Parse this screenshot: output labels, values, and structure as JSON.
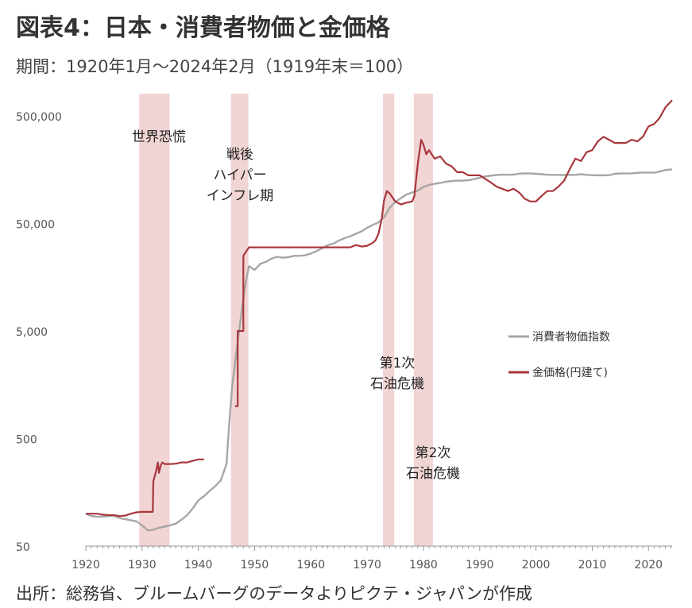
{
  "title": "図表4：日本・消費者物価と金価格",
  "subtitle": "期間：1920年1月～2024年2月（1919年末＝100）",
  "source": "出所：総務省、ブルームバーグのデータよりピクテ・ジャパンが作成",
  "chart_data": {
    "type": "line",
    "y_scale": "log",
    "xlim": [
      1920,
      2024.2
    ],
    "ylim": [
      50,
      1000000
    ],
    "x_ticks": [
      1920,
      1930,
      1940,
      1950,
      1960,
      1970,
      1980,
      1990,
      2000,
      2010,
      2020
    ],
    "y_ticks": [
      {
        "value": 50,
        "label": "50"
      },
      {
        "value": 500,
        "label": "500"
      },
      {
        "value": 5000,
        "label": "5,000"
      },
      {
        "value": 50000,
        "label": "50,000"
      },
      {
        "value": 500000,
        "label": "500,000"
      }
    ],
    "shaded_periods": [
      {
        "start": 1929.5,
        "end": 1934.9,
        "label_lines": [
          "世界恐慌"
        ]
      },
      {
        "start": 1945.8,
        "end": 1948.9,
        "label_lines": [
          "戦後",
          "ハイパー",
          "インフレ期"
        ]
      },
      {
        "start": 1972.8,
        "end": 1974.8,
        "label_lines": [
          "第1次",
          "石油危機"
        ]
      },
      {
        "start": 1978.3,
        "end": 1981.7,
        "label_lines": [
          "第2次",
          "石油危機"
        ]
      }
    ],
    "series": [
      {
        "name": "消費者物価指数",
        "color": "#a6a6a6",
        "points": [
          [
            1920,
            100
          ],
          [
            1921,
            95
          ],
          [
            1922,
            94
          ],
          [
            1923,
            94
          ],
          [
            1924,
            95
          ],
          [
            1925,
            96
          ],
          [
            1926,
            91
          ],
          [
            1927,
            89
          ],
          [
            1928,
            87
          ],
          [
            1929,
            85
          ],
          [
            1930,
            78
          ],
          [
            1931,
            70
          ],
          [
            1932,
            71
          ],
          [
            1933,
            74
          ],
          [
            1934,
            76
          ],
          [
            1935,
            78
          ],
          [
            1936,
            81
          ],
          [
            1937,
            88
          ],
          [
            1938,
            97
          ],
          [
            1939,
            112
          ],
          [
            1940,
            133
          ],
          [
            1941,
            145
          ],
          [
            1942,
            163
          ],
          [
            1943,
            180
          ],
          [
            1944,
            205
          ],
          [
            1945,
            290
          ],
          [
            1945.5,
            700
          ],
          [
            1946,
            1500
          ],
          [
            1947,
            4000
          ],
          [
            1948,
            10000
          ],
          [
            1948.5,
            15000
          ],
          [
            1949,
            20000
          ],
          [
            1950,
            18500
          ],
          [
            1951,
            21000
          ],
          [
            1952,
            22000
          ],
          [
            1953,
            23500
          ],
          [
            1954,
            24500
          ],
          [
            1955,
            24000
          ],
          [
            1956,
            24300
          ],
          [
            1957,
            25000
          ],
          [
            1958,
            25000
          ],
          [
            1959,
            25300
          ],
          [
            1960,
            26300
          ],
          [
            1961,
            27600
          ],
          [
            1962,
            29400
          ],
          [
            1963,
            31400
          ],
          [
            1964,
            32500
          ],
          [
            1965,
            34700
          ],
          [
            1966,
            36500
          ],
          [
            1967,
            38000
          ],
          [
            1968,
            40100
          ],
          [
            1969,
            42200
          ],
          [
            1970,
            45500
          ],
          [
            1971,
            48500
          ],
          [
            1972,
            51000
          ],
          [
            1973,
            57000
          ],
          [
            1974,
            70000
          ],
          [
            1975,
            79000
          ],
          [
            1976,
            86000
          ],
          [
            1977,
            93000
          ],
          [
            1978,
            97000
          ],
          [
            1979,
            101000
          ],
          [
            1980,
            109000
          ],
          [
            1981,
            114000
          ],
          [
            1982,
            117000
          ],
          [
            1983,
            119000
          ],
          [
            1984,
            122000
          ],
          [
            1985,
            124000
          ],
          [
            1986,
            125000
          ],
          [
            1987,
            125200
          ],
          [
            1988,
            126000
          ],
          [
            1989,
            129000
          ],
          [
            1990,
            133000
          ],
          [
            1991,
            137000
          ],
          [
            1992,
            139000
          ],
          [
            1993,
            141000
          ],
          [
            1994,
            142000
          ],
          [
            1995,
            142000
          ],
          [
            1996,
            142000
          ],
          [
            1997,
            145000
          ],
          [
            1998,
            146000
          ],
          [
            1999,
            145500
          ],
          [
            2000,
            144500
          ],
          [
            2001,
            143500
          ],
          [
            2002,
            142000
          ],
          [
            2003,
            141500
          ],
          [
            2004,
            141500
          ],
          [
            2005,
            141000
          ],
          [
            2006,
            141500
          ],
          [
            2007,
            141500
          ],
          [
            2008,
            143500
          ],
          [
            2009,
            141500
          ],
          [
            2010,
            140500
          ],
          [
            2011,
            140000
          ],
          [
            2012,
            140000
          ],
          [
            2013,
            140500
          ],
          [
            2014,
            144500
          ],
          [
            2015,
            145500
          ],
          [
            2016,
            145500
          ],
          [
            2017,
            146000
          ],
          [
            2018,
            147500
          ],
          [
            2019,
            148500
          ],
          [
            2020,
            148500
          ],
          [
            2021,
            148000
          ],
          [
            2022,
            152000
          ],
          [
            2023,
            157000
          ],
          [
            2024.2,
            159000
          ]
        ]
      },
      {
        "name": "金価格(円建て)",
        "color": "#a8373e",
        "segments": [
          [
            [
              1920,
              100
            ],
            [
              1921,
              100
            ],
            [
              1922,
              100
            ],
            [
              1923,
              98
            ],
            [
              1924,
              97
            ],
            [
              1925,
              97
            ],
            [
              1926,
              95
            ],
            [
              1927,
              96
            ],
            [
              1928,
              100
            ],
            [
              1929,
              103
            ],
            [
              1930,
              104
            ],
            [
              1931,
              104
            ],
            [
              1931.9,
              104
            ],
            [
              1932,
              200
            ],
            [
              1932.5,
              250
            ],
            [
              1932.8,
              300
            ],
            [
              1933,
              240
            ],
            [
              1933.3,
              280
            ],
            [
              1933.6,
              300
            ],
            [
              1934,
              290
            ],
            [
              1935,
              290
            ],
            [
              1936,
              292
            ],
            [
              1937,
              300
            ],
            [
              1938,
              300
            ],
            [
              1939,
              310
            ],
            [
              1940,
              320
            ],
            [
              1941,
              320
            ]
          ],
          [
            [
              1946.5,
              1000
            ],
            [
              1947,
              1000
            ],
            [
              1947,
              5000
            ],
            [
              1948,
              5000
            ],
            [
              1948,
              25000
            ],
            [
              1948.6,
              28000
            ],
            [
              1949,
              30000
            ],
            [
              1955,
              30000
            ],
            [
              1960,
              30000
            ],
            [
              1965,
              30000
            ],
            [
              1967,
              30000
            ],
            [
              1968,
              31500
            ],
            [
              1969,
              30500
            ],
            [
              1970,
              31000
            ],
            [
              1971,
              33000
            ],
            [
              1971.5,
              35000
            ],
            [
              1972,
              40000
            ],
            [
              1972.6,
              55000
            ],
            [
              1973,
              82000
            ],
            [
              1973.5,
              100000
            ],
            [
              1974,
              95000
            ],
            [
              1975,
              80000
            ],
            [
              1976,
              75000
            ],
            [
              1977,
              78000
            ],
            [
              1978,
              80000
            ],
            [
              1978.4,
              90000
            ],
            [
              1979,
              180000
            ],
            [
              1979.6,
              300000
            ],
            [
              1980,
              270000
            ],
            [
              1980.5,
              220000
            ],
            [
              1981,
              240000
            ],
            [
              1982,
              200000
            ],
            [
              1983,
              210000
            ],
            [
              1984,
              180000
            ],
            [
              1985,
              170000
            ],
            [
              1986,
              150000
            ],
            [
              1987,
              150000
            ],
            [
              1988,
              140000
            ],
            [
              1989,
              140000
            ],
            [
              1990,
              140000
            ],
            [
              1991,
              130000
            ],
            [
              1992,
              120000
            ],
            [
              1993,
              110000
            ],
            [
              1994,
              105000
            ],
            [
              1995,
              100000
            ],
            [
              1996,
              105000
            ],
            [
              1997,
              97000
            ],
            [
              1998,
              85000
            ],
            [
              1999,
              80000
            ],
            [
              2000,
              80000
            ],
            [
              2001,
              90000
            ],
            [
              2002,
              100000
            ],
            [
              2003,
              100000
            ],
            [
              2004,
              110000
            ],
            [
              2005,
              125000
            ],
            [
              2006,
              160000
            ],
            [
              2007,
              200000
            ],
            [
              2008,
              190000
            ],
            [
              2009,
              230000
            ],
            [
              2010,
              240000
            ],
            [
              2011,
              290000
            ],
            [
              2012,
              320000
            ],
            [
              2013,
              300000
            ],
            [
              2014,
              280000
            ],
            [
              2015,
              280000
            ],
            [
              2016,
              280000
            ],
            [
              2017,
              300000
            ],
            [
              2018,
              290000
            ],
            [
              2019,
              320000
            ],
            [
              2020,
              400000
            ],
            [
              2021,
              420000
            ],
            [
              2022,
              480000
            ],
            [
              2023,
              600000
            ],
            [
              2024.2,
              700000
            ]
          ]
        ]
      }
    ],
    "legend": {
      "placement": "right-middle",
      "entries": [
        "消費者物価指数",
        "金価格(円建て)"
      ]
    }
  }
}
